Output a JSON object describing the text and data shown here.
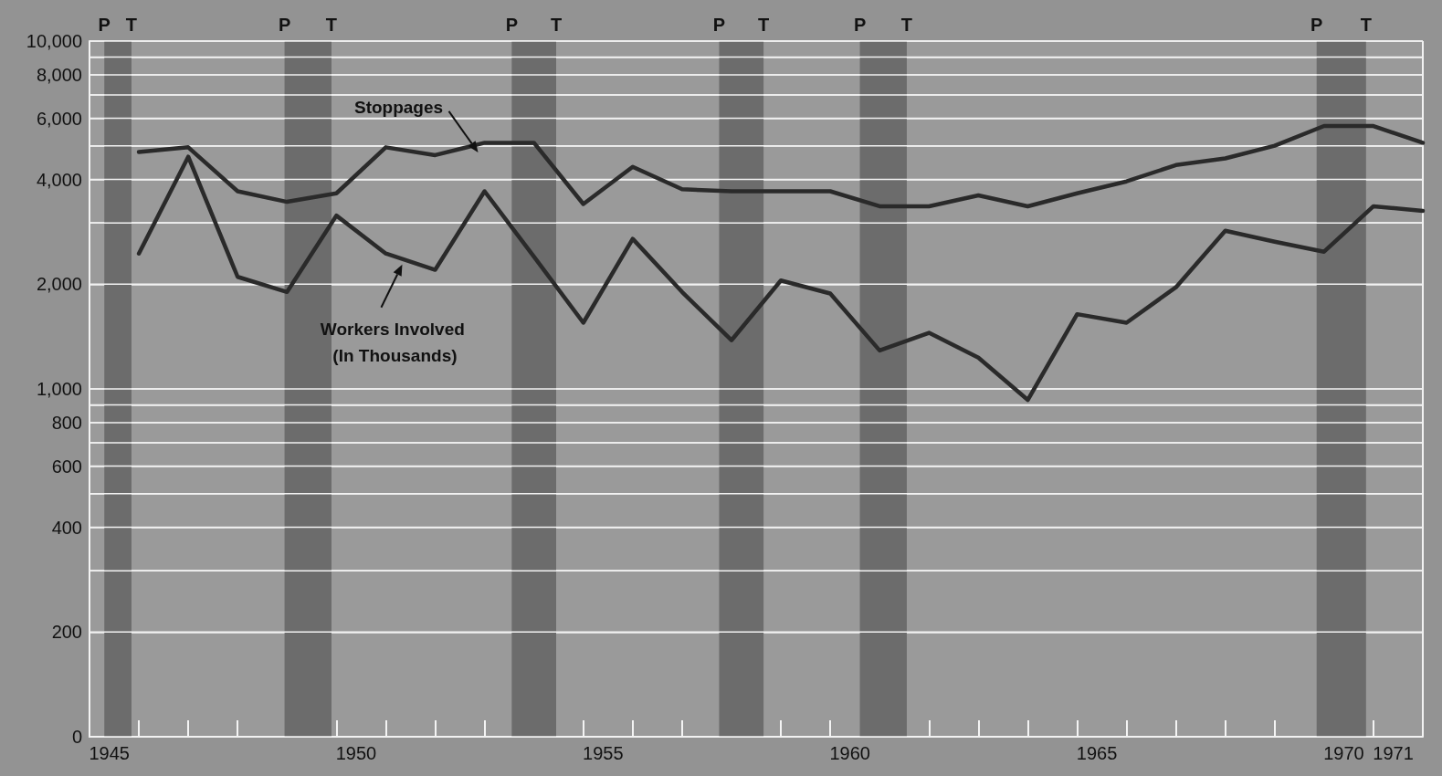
{
  "chart_data": {
    "type": "line",
    "x": [
      1945.6,
      1946.6,
      1947.6,
      1948.6,
      1949.6,
      1950.6,
      1951.6,
      1952.6,
      1953.6,
      1954.6,
      1955.6,
      1956.6,
      1957.6,
      1958.6,
      1959.6,
      1960.6,
      1961.6,
      1962.6,
      1963.6,
      1964.6,
      1965.6,
      1966.6,
      1967.6,
      1968.6,
      1969.6,
      1970.6,
      1971.6
    ],
    "series": [
      {
        "name": "Stoppages",
        "color": "#2a2a2a",
        "values": [
          4800,
          4950,
          3700,
          3450,
          3650,
          4950,
          4700,
          5100,
          5100,
          3400,
          4350,
          3750,
          3700,
          3700,
          3700,
          3350,
          3350,
          3600,
          3350,
          3650,
          3950,
          4400,
          4600,
          5000,
          5700,
          5700,
          5100
        ]
      },
      {
        "name": "Workers Involved (In Thousands)",
        "color": "#2a2a2a",
        "values": [
          2450,
          4650,
          2100,
          1900,
          3150,
          2450,
          2200,
          3700,
          2400,
          1550,
          2700,
          1900,
          1380,
          2050,
          1880,
          1290,
          1450,
          1230,
          930,
          1640,
          1550,
          1960,
          2850,
          2650,
          2480,
          3350,
          3250
        ]
      }
    ],
    "log": "y",
    "xlim": [
      1944.6,
      1971.6
    ],
    "xticks": [
      1945,
      1950,
      1955,
      1960,
      1965,
      1970,
      1971
    ],
    "ylim": [
      0,
      10000
    ],
    "yticks": [
      0,
      200,
      {
        "value": 300,
        "label": null
      },
      400,
      {
        "value": 500,
        "label": null
      },
      600,
      {
        "value": 700,
        "label": null
      },
      800,
      {
        "value": 900,
        "label": null
      },
      {
        "value": 1000,
        "label": "1,000"
      },
      {
        "value": 2000,
        "label": "2,000"
      },
      {
        "value": 3000,
        "label": null
      },
      {
        "value": 4000,
        "label": "4,000"
      },
      {
        "value": 5000,
        "label": null
      },
      {
        "value": 6000,
        "label": "6,000"
      },
      {
        "value": 7000,
        "label": null
      },
      {
        "value": 8000,
        "label": "8,000"
      },
      {
        "value": 9000,
        "label": null
      },
      {
        "value": 10000,
        "label": "10,000"
      }
    ],
    "grid": "y",
    "legend": false,
    "marker": "none",
    "line_style": "solid",
    "bands": [
      {
        "axis": "x",
        "from": 1944.9,
        "to": 1945.45,
        "color": "#6c6c6c"
      },
      {
        "axis": "x",
        "from": 1948.55,
        "to": 1949.5,
        "color": "#6c6c6c"
      },
      {
        "axis": "x",
        "from": 1953.15,
        "to": 1954.05,
        "color": "#6c6c6c"
      },
      {
        "axis": "x",
        "from": 1957.35,
        "to": 1958.25,
        "color": "#6c6c6c"
      },
      {
        "axis": "x",
        "from": 1960.2,
        "to": 1961.15,
        "color": "#6c6c6c"
      },
      {
        "axis": "x",
        "from": 1969.45,
        "to": 1970.45,
        "color": "#6c6c6c"
      }
    ],
    "annotations": [
      {
        "text": "P",
        "x": 1944.9,
        "y": 10000
      },
      {
        "text": "T",
        "x": 1945.45,
        "y": 10000
      },
      {
        "text": "P",
        "x": 1948.55,
        "y": 10000
      },
      {
        "text": "T",
        "x": 1949.5,
        "y": 10000
      },
      {
        "text": "P",
        "x": 1953.15,
        "y": 10000
      },
      {
        "text": "T",
        "x": 1954.05,
        "y": 10000
      },
      {
        "text": "P",
        "x": 1957.35,
        "y": 10000
      },
      {
        "text": "T",
        "x": 1958.25,
        "y": 10000
      },
      {
        "text": "P",
        "x": 1960.2,
        "y": 10000
      },
      {
        "text": "T",
        "x": 1961.15,
        "y": 10000
      },
      {
        "text": "P",
        "x": 1969.45,
        "y": 10000
      },
      {
        "text": "T",
        "x": 1970.45,
        "y": 10000
      }
    ]
  }
}
